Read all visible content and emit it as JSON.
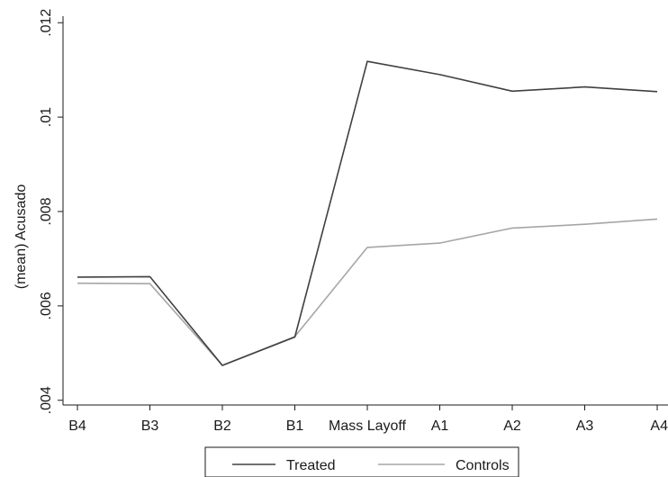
{
  "chart_data": {
    "type": "line",
    "categories": [
      "B4",
      "B3",
      "B2",
      "B1",
      "Mass Layoff",
      "A1",
      "A2",
      "A3",
      "A4"
    ],
    "series": [
      {
        "name": "Treated",
        "color": "#404040",
        "values": [
          0.00661,
          0.00662,
          0.00474,
          0.00534,
          0.01118,
          0.0109,
          0.01055,
          0.01064,
          0.01054
        ]
      },
      {
        "name": "Controls",
        "color": "#a6a6a6",
        "values": [
          0.00648,
          0.00647,
          0.00474,
          0.00535,
          0.00724,
          0.00733,
          0.00765,
          0.00773,
          0.00784
        ]
      }
    ],
    "y_ticks": [
      ".004",
      ".006",
      ".008",
      ".01",
      ".012"
    ],
    "ylim": [
      0.0039,
      0.0121
    ],
    "ylabel": "(mean) Acusado",
    "xlabel": "",
    "grid": false,
    "legend_position": "bottom"
  }
}
